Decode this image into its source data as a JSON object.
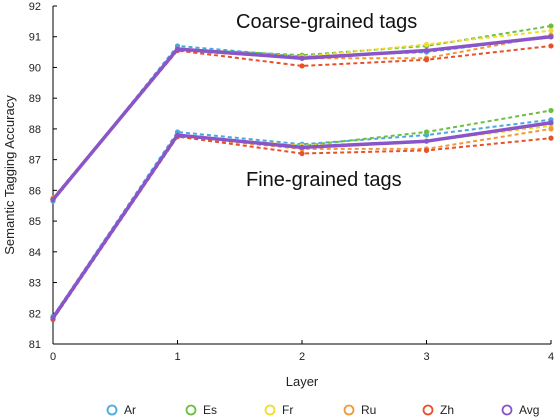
{
  "chart_data": {
    "type": "line",
    "xlabel": "Layer",
    "ylabel": "Semantic Tagging Accuracy",
    "x": [
      0,
      1,
      2,
      3,
      4
    ],
    "xlim": [
      0,
      4
    ],
    "ylim": [
      81,
      92
    ],
    "xticks": [
      "0",
      "1",
      "2",
      "3",
      "4"
    ],
    "yticks": [
      "81",
      "82",
      "83",
      "84",
      "85",
      "86",
      "87",
      "88",
      "89",
      "90",
      "91",
      "92"
    ],
    "grid": false,
    "legend_position": "bottom",
    "annotations": [
      {
        "text": "Coarse-grained tags"
      },
      {
        "text": "Fine-grained tags"
      }
    ],
    "legend": [
      {
        "label": "Ar",
        "color": "#4aa8e0"
      },
      {
        "label": "Es",
        "color": "#6bbf3f"
      },
      {
        "label": "Fr",
        "color": "#f2dc2e"
      },
      {
        "label": "Ru",
        "color": "#f0983a"
      },
      {
        "label": "Zh",
        "color": "#e8502a"
      },
      {
        "label": "Avg",
        "color": "#8a55c8"
      }
    ],
    "groups": [
      {
        "annotation": "Coarse-grained tags",
        "series": [
          {
            "legend": "Ar",
            "color": "#4aa8e0",
            "values": [
              85.65,
              90.7,
              90.35,
              90.5,
              91.0
            ]
          },
          {
            "legend": "Es",
            "color": "#6bbf3f",
            "values": [
              85.7,
              90.6,
              90.4,
              90.7,
              91.35
            ]
          },
          {
            "legend": "Fr",
            "color": "#f2dc2e",
            "values": [
              85.75,
              90.6,
              90.35,
              90.75,
              91.2
            ]
          },
          {
            "legend": "Ru",
            "color": "#f0983a",
            "values": [
              85.75,
              90.55,
              90.3,
              90.3,
              91.05
            ]
          },
          {
            "legend": "Zh",
            "color": "#e8502a",
            "values": [
              85.7,
              90.55,
              90.05,
              90.25,
              90.7
            ]
          },
          {
            "legend": "Avg",
            "color": "#8a55c8",
            "values": [
              85.7,
              90.6,
              90.3,
              90.55,
              91.0
            ]
          }
        ]
      },
      {
        "annotation": "Fine-grained tags",
        "series": [
          {
            "legend": "Ar",
            "color": "#4aa8e0",
            "values": [
              81.9,
              87.9,
              87.5,
              87.8,
              88.3
            ]
          },
          {
            "legend": "Es",
            "color": "#6bbf3f",
            "values": [
              81.85,
              87.75,
              87.45,
              87.9,
              88.6
            ]
          },
          {
            "legend": "Fr",
            "color": "#f2dc2e",
            "values": [
              81.85,
              87.8,
              87.45,
              87.6,
              88.1
            ]
          },
          {
            "legend": "Ru",
            "color": "#f0983a",
            "values": [
              81.8,
              87.75,
              87.35,
              87.35,
              88.0
            ]
          },
          {
            "legend": "Zh",
            "color": "#e8502a",
            "values": [
              81.8,
              87.75,
              87.2,
              87.3,
              87.7
            ]
          },
          {
            "legend": "Avg",
            "color": "#8a55c8",
            "values": [
              81.85,
              87.8,
              87.4,
              87.6,
              88.2
            ]
          }
        ]
      }
    ]
  }
}
